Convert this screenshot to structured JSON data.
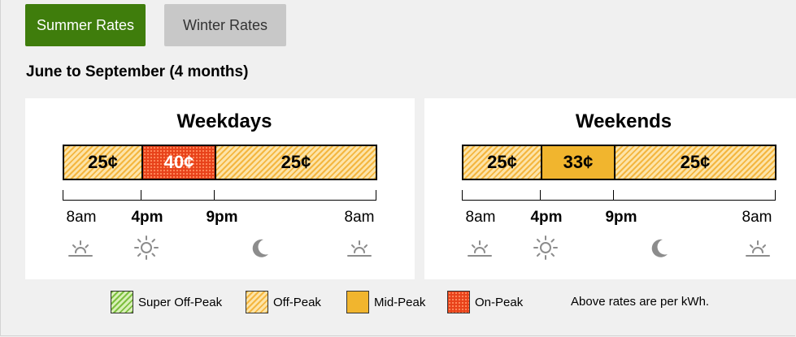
{
  "tabs": [
    {
      "label": "Summer Rates",
      "active": true
    },
    {
      "label": "Winter Rates",
      "active": false
    }
  ],
  "subtitle": "June to September (4 months)",
  "weekdays": {
    "title": "Weekdays",
    "segments": [
      {
        "rate": "25¢",
        "type": "off-peak"
      },
      {
        "rate": "40¢",
        "type": "on-peak"
      },
      {
        "rate": "25¢",
        "type": "off-peak"
      }
    ],
    "times": [
      "8am",
      "4pm",
      "9pm",
      "8am"
    ],
    "icons": [
      "sunrise-icon",
      "sun-icon",
      "moon-icon",
      "sunrise-icon"
    ]
  },
  "weekends": {
    "title": "Weekends",
    "segments": [
      {
        "rate": "25¢",
        "type": "off-peak"
      },
      {
        "rate": "33¢",
        "type": "mid-peak"
      },
      {
        "rate": "25¢",
        "type": "off-peak"
      }
    ],
    "times": [
      "8am",
      "4pm",
      "9pm",
      "8am"
    ],
    "icons": [
      "sunrise-icon",
      "sun-icon",
      "moon-icon",
      "sunrise-icon"
    ]
  },
  "legend": [
    {
      "label": "Super Off-Peak",
      "color": "#7cbf3e"
    },
    {
      "label": "Off-Peak",
      "color": "#f4b63f"
    },
    {
      "label": "Mid-Peak",
      "color": "#f1b52e"
    },
    {
      "label": "On-Peak",
      "color": "#e8421a"
    }
  ],
  "note": "Above rates are per kWh.",
  "colors": {
    "active_tab": "#3f7d0c",
    "inactive_tab": "#c8c8c8"
  }
}
